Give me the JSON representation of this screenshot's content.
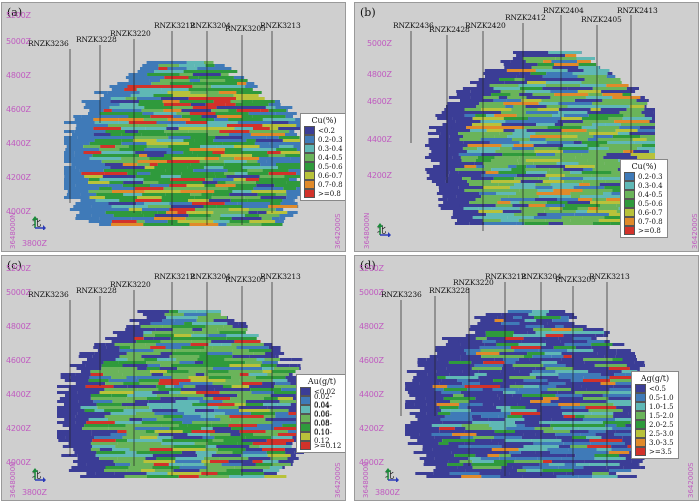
{
  "panels": [
    {
      "tag": "(a)",
      "zlabels": [
        "5200Z",
        "5000Z",
        "4800Z",
        "4600Z",
        "4400Z",
        "4200Z",
        "4000Z",
        "3800Z"
      ],
      "vlabels": [
        "3648000N",
        "3642000S"
      ],
      "holes": [
        "RNZK3236",
        "RNZK3228",
        "RNZK3220",
        "RNZK3212",
        "RNZK3204",
        "RNZK3205",
        "RNZK3213"
      ],
      "north": "北",
      "legend": {
        "title": "Cu(%)",
        "items": [
          {
            "label": "<0.2",
            "color": "#3b3d96"
          },
          {
            "label": "0.2-0.3",
            "color": "#3f7ab8"
          },
          {
            "label": "0.3-0.4",
            "color": "#5fb8b5"
          },
          {
            "label": "0.4-0.5",
            "color": "#6ab45a"
          },
          {
            "label": "0.5-0.6",
            "color": "#2f9a3c"
          },
          {
            "label": "0.6-0.7",
            "color": "#b8c23a"
          },
          {
            "label": "0.7-0.8",
            "color": "#e08a2a"
          },
          {
            "label": ">=0.8",
            "color": "#d2322a"
          }
        ]
      }
    },
    {
      "tag": "(b)",
      "zlabels": [
        "5000Z",
        "4800Z",
        "4600Z",
        "4400Z",
        "4200Z"
      ],
      "vlabels": [
        "3648000N",
        "3642000S"
      ],
      "holes": [
        "RNZK2436",
        "RNZK2428",
        "RNZK2420",
        "RNZK2412",
        "RNZK2404",
        "RNZK2405",
        "RNZK2413"
      ],
      "north": "北",
      "legend": {
        "title": "Cu(%)",
        "items": [
          {
            "label": "0.2-0.3",
            "color": "#3f7ab8"
          },
          {
            "label": "0.3-0.4",
            "color": "#5fb8b5"
          },
          {
            "label": "0.4-0.5",
            "color": "#6ab45a"
          },
          {
            "label": "0.5-0.6",
            "color": "#2f9a3c"
          },
          {
            "label": "0.6-0.7",
            "color": "#b8c23a"
          },
          {
            "label": "0.7-0.8",
            "color": "#e08a2a"
          },
          {
            "label": ">=0.8",
            "color": "#d2322a"
          }
        ]
      }
    },
    {
      "tag": "(c)",
      "zlabels": [
        "5200Z",
        "5000Z",
        "4800Z",
        "4600Z",
        "4400Z",
        "4200Z",
        "4000Z",
        "3800Z"
      ],
      "vlabels": [
        "3648000N",
        "3642000S"
      ],
      "holes": [
        "RNZK3236",
        "RNZK3228",
        "RNZK3220",
        "RNZK3212",
        "RNZK3204",
        "RNZK3205",
        "RNZK3213"
      ],
      "north": "北",
      "legend": {
        "title": "Au(g/t)",
        "items": [
          {
            "label": "<0.02",
            "color": "#3b3d96"
          },
          {
            "label": "0.02-0.04",
            "color": "#3f7ab8"
          },
          {
            "label": "0.04-0.06",
            "color": "#5fb8b5"
          },
          {
            "label": "0.06-0.08",
            "color": "#6ab45a"
          },
          {
            "label": "0.08-0.10",
            "color": "#2f9a3c"
          },
          {
            "label": "0.10-0.12",
            "color": "#b8c23a"
          },
          {
            "label": ">=0.12",
            "color": "#d2322a"
          }
        ]
      }
    },
    {
      "tag": "(d)",
      "zlabels": [
        "5200Z",
        "5000Z",
        "4800Z",
        "4600Z",
        "4400Z",
        "4200Z",
        "4000Z",
        "3800Z"
      ],
      "vlabels": [
        "3648000N",
        "3642000S"
      ],
      "holes": [
        "RNZK3236",
        "RNZK3228",
        "RNZK3220",
        "RNZK3212",
        "RNZK3204",
        "RNZK3205",
        "RNZK3213"
      ],
      "north": "北",
      "legend": {
        "title": "Ag(g/t)",
        "items": [
          {
            "label": "<0.5",
            "color": "#3b3d96"
          },
          {
            "label": "0.5-1.0",
            "color": "#3f7ab8"
          },
          {
            "label": "1.0-1.5",
            "color": "#5fb8b5"
          },
          {
            "label": "1.5-2.0",
            "color": "#6ab45a"
          },
          {
            "label": "2.0-2.5",
            "color": "#2f9a3c"
          },
          {
            "label": "2.5-3.0",
            "color": "#b8c23a"
          },
          {
            "label": "3.0-3.5",
            "color": "#e08a2a"
          },
          {
            "label": ">=3.5",
            "color": "#d2322a"
          }
        ]
      }
    }
  ]
}
